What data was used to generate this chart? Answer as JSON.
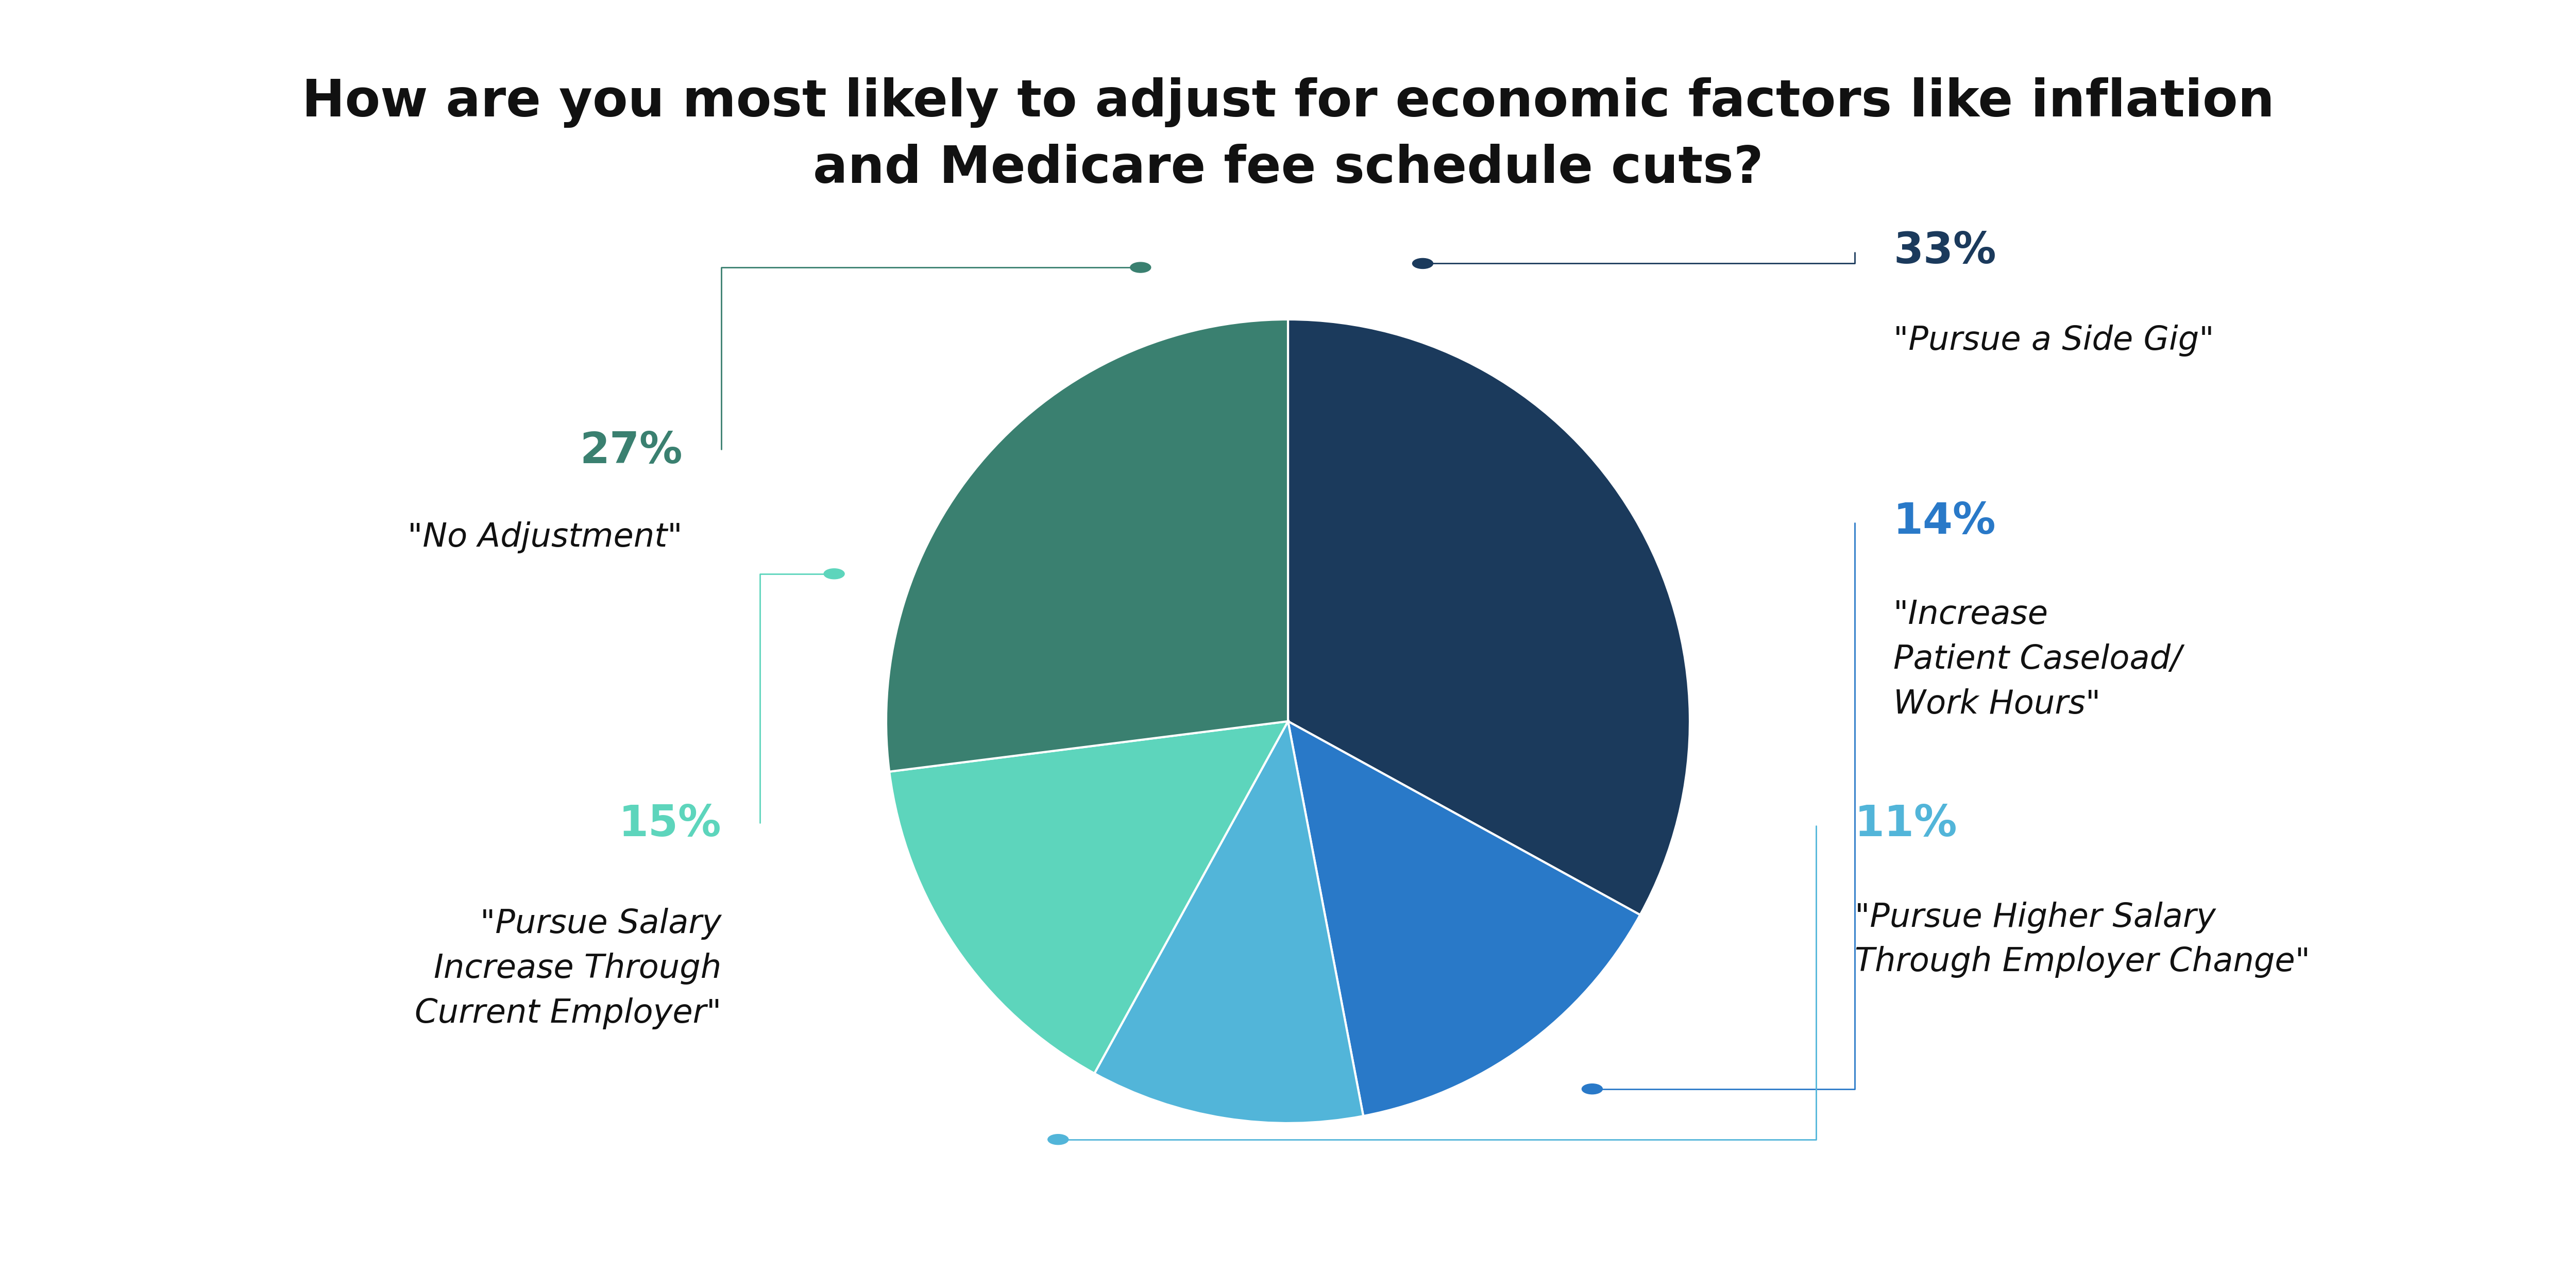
{
  "title": "How are you most likely to adjust for economic factors like inflation\nand Medicare fee schedule cuts?",
  "title_fontsize": 72,
  "title_fontweight": "bold",
  "title_color": "#111111",
  "background_color": "#ffffff",
  "slices": [
    {
      "label": "\"Pursue a Side Gig\"",
      "pct_label": "33%",
      "value": 33,
      "color": "#1b3a5c"
    },
    {
      "label": "\"Increase\nPatient Caseload/\nWork Hours\"",
      "pct_label": "14%",
      "value": 14,
      "color": "#2979c8"
    },
    {
      "label": "\"Pursue Higher Salary\nThrough Employer Change\"",
      "pct_label": "11%",
      "value": 11,
      "color": "#52b5d9"
    },
    {
      "label": "\"Pursue Salary\nIncrease Through\nCurrent Employer\"",
      "pct_label": "15%",
      "value": 15,
      "color": "#5dd5bc"
    },
    {
      "label": "\"No Adjustment\"",
      "pct_label": "27%",
      "value": 27,
      "color": "#3a8070"
    }
  ],
  "pct_colors": [
    "#1b3a5c",
    "#2979c8",
    "#52b5d9",
    "#5dd5bc",
    "#3a8070"
  ],
  "label_fontsize": 46,
  "pct_fontsize": 60,
  "startangle": 90,
  "figsize": [
    50,
    25
  ]
}
